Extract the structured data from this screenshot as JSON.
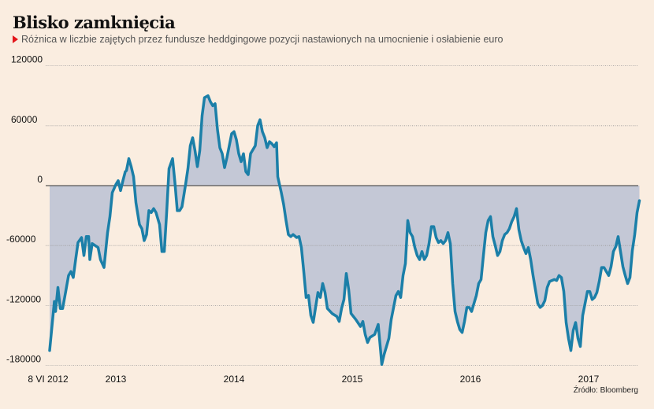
{
  "title": "Blisko zamknięcia",
  "subtitle": "Różnica w liczbie zajętych przez fundusze heddgingowe pozycji nastawionych na umocnienie i osłabienie euro",
  "source": "Źródło: Bloomberg",
  "colors": {
    "background": "#faede0",
    "line": "#1b7fa8",
    "fill": "#c4c8d6",
    "accent": "#e3161b"
  },
  "chart_data": {
    "type": "area",
    "title": "Blisko zamknięcia",
    "xlabel": "",
    "ylabel": "",
    "ylim": [
      -180000,
      120000
    ],
    "yticks": [
      "120000",
      "60000",
      "0",
      "-60000",
      "-120000",
      "-180000"
    ],
    "ytick_values": [
      120000,
      60000,
      0,
      -60000,
      -120000,
      -180000
    ],
    "xticks": [
      {
        "label": "8 VI 2012",
        "x": 2012.44
      },
      {
        "label": "2013",
        "x": 2013.0
      },
      {
        "label": "2014",
        "x": 2014.0
      },
      {
        "label": "2015",
        "x": 2015.0
      },
      {
        "label": "2016",
        "x": 2016.0
      },
      {
        "label": "2017",
        "x": 2017.0
      }
    ],
    "grid": "horizontal dotted",
    "points": [
      [
        2012.44,
        -165000
      ],
      [
        2012.48,
        -116000
      ],
      [
        2012.49,
        -126000
      ],
      [
        2012.51,
        -102000
      ],
      [
        2012.53,
        -123000
      ],
      [
        2012.55,
        -123000
      ],
      [
        2012.57,
        -110000
      ],
      [
        2012.6,
        -90000
      ],
      [
        2012.62,
        -86000
      ],
      [
        2012.64,
        -92000
      ],
      [
        2012.66,
        -74000
      ],
      [
        2012.68,
        -57000
      ],
      [
        2012.71,
        -52000
      ],
      [
        2012.73,
        -70000
      ],
      [
        2012.75,
        -51000
      ],
      [
        2012.77,
        -51000
      ],
      [
        2012.78,
        -74000
      ],
      [
        2012.8,
        -58000
      ],
      [
        2012.85,
        -62000
      ],
      [
        2012.87,
        -74000
      ],
      [
        2012.9,
        -82000
      ],
      [
        2012.93,
        -47000
      ],
      [
        2012.95,
        -31000
      ],
      [
        2012.97,
        -7000
      ],
      [
        2013.0,
        1000
      ],
      [
        2013.02,
        5000
      ],
      [
        2013.04,
        -5000
      ],
      [
        2013.06,
        5000
      ],
      [
        2013.08,
        14000
      ],
      [
        2013.09,
        15000
      ],
      [
        2013.11,
        27000
      ],
      [
        2013.13,
        19000
      ],
      [
        2013.15,
        9000
      ],
      [
        2013.17,
        -17000
      ],
      [
        2013.2,
        -39000
      ],
      [
        2013.22,
        -43000
      ],
      [
        2013.24,
        -55000
      ],
      [
        2013.26,
        -49000
      ],
      [
        2013.28,
        -25000
      ],
      [
        2013.3,
        -27000
      ],
      [
        2013.32,
        -23000
      ],
      [
        2013.34,
        -27000
      ],
      [
        2013.37,
        -39000
      ],
      [
        2013.39,
        -66000
      ],
      [
        2013.41,
        -66000
      ],
      [
        2013.43,
        -27000
      ],
      [
        2013.45,
        17000
      ],
      [
        2013.48,
        27000
      ],
      [
        2013.5,
        3000
      ],
      [
        2013.52,
        -25000
      ],
      [
        2013.54,
        -25000
      ],
      [
        2013.56,
        -21000
      ],
      [
        2013.59,
        1000
      ],
      [
        2013.61,
        17000
      ],
      [
        2013.63,
        40000
      ],
      [
        2013.65,
        48000
      ],
      [
        2013.67,
        35000
      ],
      [
        2013.69,
        19000
      ],
      [
        2013.71,
        35000
      ],
      [
        2013.73,
        70000
      ],
      [
        2013.75,
        88000
      ],
      [
        2013.78,
        90000
      ],
      [
        2013.8,
        84000
      ],
      [
        2013.82,
        80000
      ],
      [
        2013.84,
        82000
      ],
      [
        2013.86,
        56000
      ],
      [
        2013.88,
        38000
      ],
      [
        2013.9,
        32000
      ],
      [
        2013.92,
        18000
      ],
      [
        2013.94,
        28000
      ],
      [
        2013.96,
        40000
      ],
      [
        2013.98,
        52000
      ],
      [
        2014.0,
        54000
      ],
      [
        2014.02,
        46000
      ],
      [
        2014.04,
        32000
      ],
      [
        2014.06,
        24000
      ],
      [
        2014.08,
        32000
      ],
      [
        2014.1,
        14000
      ],
      [
        2014.12,
        11000
      ],
      [
        2014.14,
        32000
      ],
      [
        2014.16,
        36000
      ],
      [
        2014.18,
        40000
      ],
      [
        2014.2,
        60000
      ],
      [
        2014.22,
        66000
      ],
      [
        2014.24,
        54000
      ],
      [
        2014.26,
        48000
      ],
      [
        2014.28,
        38000
      ],
      [
        2014.3,
        44000
      ],
      [
        2014.32,
        42000
      ],
      [
        2014.34,
        39000
      ],
      [
        2014.36,
        43000
      ],
      [
        2014.37,
        9000
      ],
      [
        2014.4,
        -7000
      ],
      [
        2014.42,
        -19000
      ],
      [
        2014.44,
        -35000
      ],
      [
        2014.46,
        -49000
      ],
      [
        2014.48,
        -51000
      ],
      [
        2014.5,
        -49000
      ],
      [
        2014.53,
        -52000
      ],
      [
        2014.55,
        -51000
      ],
      [
        2014.57,
        -62000
      ],
      [
        2014.59,
        -86000
      ],
      [
        2014.61,
        -112000
      ],
      [
        2014.63,
        -110000
      ],
      [
        2014.65,
        -130000
      ],
      [
        2014.67,
        -137000
      ],
      [
        2014.69,
        -122000
      ],
      [
        2014.71,
        -107000
      ],
      [
        2014.73,
        -112000
      ],
      [
        2014.75,
        -98000
      ],
      [
        2014.77,
        -107000
      ],
      [
        2014.79,
        -123000
      ],
      [
        2014.83,
        -128000
      ],
      [
        2014.87,
        -131000
      ],
      [
        2014.89,
        -136000
      ],
      [
        2014.91,
        -123000
      ],
      [
        2014.93,
        -114000
      ],
      [
        2014.95,
        -88000
      ],
      [
        2014.97,
        -104000
      ],
      [
        2014.99,
        -128000
      ],
      [
        2015.03,
        -134000
      ],
      [
        2015.07,
        -141000
      ],
      [
        2015.09,
        -136000
      ],
      [
        2015.11,
        -149000
      ],
      [
        2015.13,
        -157000
      ],
      [
        2015.15,
        -152000
      ],
      [
        2015.19,
        -149000
      ],
      [
        2015.22,
        -139000
      ],
      [
        2015.24,
        -165000
      ],
      [
        2015.25,
        -179000
      ],
      [
        2015.27,
        -169000
      ],
      [
        2015.29,
        -161000
      ],
      [
        2015.31,
        -153000
      ],
      [
        2015.33,
        -134000
      ],
      [
        2015.35,
        -122000
      ],
      [
        2015.37,
        -110000
      ],
      [
        2015.39,
        -106000
      ],
      [
        2015.41,
        -112000
      ],
      [
        2015.43,
        -90000
      ],
      [
        2015.45,
        -78000
      ],
      [
        2015.47,
        -35000
      ],
      [
        2015.49,
        -47000
      ],
      [
        2015.51,
        -51000
      ],
      [
        2015.53,
        -62000
      ],
      [
        2015.55,
        -70000
      ],
      [
        2015.57,
        -74000
      ],
      [
        2015.59,
        -66000
      ],
      [
        2015.61,
        -74000
      ],
      [
        2015.63,
        -70000
      ],
      [
        2015.65,
        -58000
      ],
      [
        2015.67,
        -41000
      ],
      [
        2015.69,
        -41000
      ],
      [
        2015.71,
        -52000
      ],
      [
        2015.73,
        -57000
      ],
      [
        2015.75,
        -55000
      ],
      [
        2015.77,
        -58000
      ],
      [
        2015.79,
        -55000
      ],
      [
        2015.81,
        -47000
      ],
      [
        2015.83,
        -58000
      ],
      [
        2015.85,
        -98000
      ],
      [
        2015.87,
        -126000
      ],
      [
        2015.89,
        -136000
      ],
      [
        2015.91,
        -144000
      ],
      [
        2015.93,
        -147000
      ],
      [
        2015.95,
        -136000
      ],
      [
        2015.97,
        -122000
      ],
      [
        2015.99,
        -122000
      ],
      [
        2016.01,
        -126000
      ],
      [
        2016.03,
        -118000
      ],
      [
        2016.05,
        -110000
      ],
      [
        2016.07,
        -98000
      ],
      [
        2016.09,
        -94000
      ],
      [
        2016.11,
        -70000
      ],
      [
        2016.13,
        -47000
      ],
      [
        2016.15,
        -35000
      ],
      [
        2016.17,
        -31000
      ],
      [
        2016.19,
        -51000
      ],
      [
        2016.21,
        -60000
      ],
      [
        2016.23,
        -70000
      ],
      [
        2016.25,
        -66000
      ],
      [
        2016.27,
        -55000
      ],
      [
        2016.29,
        -49000
      ],
      [
        2016.31,
        -47000
      ],
      [
        2016.33,
        -43000
      ],
      [
        2016.35,
        -36000
      ],
      [
        2016.37,
        -31000
      ],
      [
        2016.39,
        -23000
      ],
      [
        2016.41,
        -44000
      ],
      [
        2016.43,
        -55000
      ],
      [
        2016.45,
        -62000
      ],
      [
        2016.47,
        -68000
      ],
      [
        2016.49,
        -62000
      ],
      [
        2016.51,
        -74000
      ],
      [
        2016.53,
        -90000
      ],
      [
        2016.55,
        -104000
      ],
      [
        2016.57,
        -118000
      ],
      [
        2016.59,
        -122000
      ],
      [
        2016.61,
        -120000
      ],
      [
        2016.63,
        -115000
      ],
      [
        2016.65,
        -102000
      ],
      [
        2016.67,
        -96000
      ],
      [
        2016.71,
        -94000
      ],
      [
        2016.73,
        -95000
      ],
      [
        2016.75,
        -90000
      ],
      [
        2016.77,
        -92000
      ],
      [
        2016.79,
        -106000
      ],
      [
        2016.81,
        -137000
      ],
      [
        2016.83,
        -153000
      ],
      [
        2016.85,
        -165000
      ],
      [
        2016.87,
        -145000
      ],
      [
        2016.89,
        -137000
      ],
      [
        2016.91,
        -153000
      ],
      [
        2016.93,
        -161000
      ],
      [
        2016.95,
        -130000
      ],
      [
        2016.97,
        -118000
      ],
      [
        2016.99,
        -106000
      ],
      [
        2017.01,
        -106000
      ],
      [
        2017.03,
        -114000
      ],
      [
        2017.05,
        -112000
      ],
      [
        2017.07,
        -107000
      ],
      [
        2017.09,
        -96000
      ],
      [
        2017.11,
        -82000
      ],
      [
        2017.13,
        -82000
      ],
      [
        2017.15,
        -86000
      ],
      [
        2017.17,
        -90000
      ],
      [
        2017.19,
        -81000
      ],
      [
        2017.21,
        -66000
      ],
      [
        2017.23,
        -61000
      ],
      [
        2017.25,
        -51000
      ],
      [
        2017.27,
        -66000
      ],
      [
        2017.29,
        -81000
      ],
      [
        2017.31,
        -90000
      ],
      [
        2017.33,
        -98000
      ],
      [
        2017.35,
        -92000
      ],
      [
        2017.37,
        -65000
      ],
      [
        2017.39,
        -49000
      ],
      [
        2017.41,
        -27000
      ],
      [
        2017.43,
        -15000
      ]
    ]
  }
}
